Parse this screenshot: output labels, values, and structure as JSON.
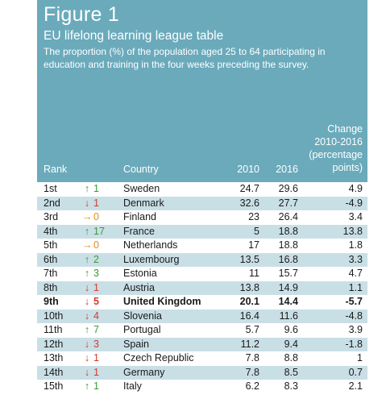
{
  "header": {
    "title": "Figure 1",
    "subtitle": "EU lifelong learning league table",
    "description": "The proportion (%) of the population aged 25 to 64 participating in education and training in the four weeks preceding the survey.",
    "background": "#6aaabb"
  },
  "columns": {
    "rank": "Rank",
    "country": "Country",
    "y2010": "2010",
    "y2016": "2016",
    "change_line1": "Change",
    "change_line2": "2010-2016",
    "change_line3": "(percentage",
    "change_line4": "points)"
  },
  "colors": {
    "up": "#3a9a3a",
    "down": "#d43a2a",
    "same": "#e98a1a",
    "shaded_row": "#c9dfe6"
  },
  "rows": [
    {
      "rank": "1st",
      "dir": "up",
      "move": "1",
      "country": "Sweden",
      "v2010": "24.7",
      "v2016": "29.6",
      "change": "4.9",
      "highlight": false
    },
    {
      "rank": "2nd",
      "dir": "down",
      "move": "1",
      "country": "Denmark",
      "v2010": "32.6",
      "v2016": "27.7",
      "change": "-4.9",
      "highlight": false
    },
    {
      "rank": "3rd",
      "dir": "same",
      "move": "0",
      "country": "Finland",
      "v2010": "23",
      "v2016": "26.4",
      "change": "3.4",
      "highlight": false
    },
    {
      "rank": "4th",
      "dir": "up",
      "move": "17",
      "country": "France",
      "v2010": "5",
      "v2016": "18.8",
      "change": "13.8",
      "highlight": false
    },
    {
      "rank": "5th",
      "dir": "same",
      "move": "0",
      "country": "Netherlands",
      "v2010": "17",
      "v2016": "18.8",
      "change": "1.8",
      "highlight": false
    },
    {
      "rank": "6th",
      "dir": "up",
      "move": "2",
      "country": "Luxembourg",
      "v2010": "13.5",
      "v2016": "16.8",
      "change": "3.3",
      "highlight": false
    },
    {
      "rank": "7th",
      "dir": "up",
      "move": "3",
      "country": "Estonia",
      "v2010": "11",
      "v2016": "15.7",
      "change": "4.7",
      "highlight": false
    },
    {
      "rank": "8th",
      "dir": "down",
      "move": "1",
      "country": "Austria",
      "v2010": "13.8",
      "v2016": "14.9",
      "change": "1.1",
      "highlight": false
    },
    {
      "rank": "9th",
      "dir": "down",
      "move": "5",
      "country": "United Kingdom",
      "v2010": "20.1",
      "v2016": "14.4",
      "change": "-5.7",
      "highlight": true
    },
    {
      "rank": "10th",
      "dir": "down",
      "move": "4",
      "country": "Slovenia",
      "v2010": "16.4",
      "v2016": "11.6",
      "change": "-4.8",
      "highlight": false
    },
    {
      "rank": "11th",
      "dir": "up",
      "move": "7",
      "country": "Portugal",
      "v2010": "5.7",
      "v2016": "9.6",
      "change": "3.9",
      "highlight": false
    },
    {
      "rank": "12th",
      "dir": "down",
      "move": "3",
      "country": "Spain",
      "v2010": "11.2",
      "v2016": "9.4",
      "change": "-1.8",
      "highlight": false
    },
    {
      "rank": "13th",
      "dir": "down",
      "move": "1",
      "country": "Czech Republic",
      "v2010": "7.8",
      "v2016": "8.8",
      "change": "1",
      "highlight": false
    },
    {
      "rank": "14th",
      "dir": "down",
      "move": "1",
      "country": "Germany",
      "v2010": "7.8",
      "v2016": "8.5",
      "change": "0.7",
      "highlight": false
    },
    {
      "rank": "15th",
      "dir": "up",
      "move": "1",
      "country": "Italy",
      "v2010": "6.2",
      "v2016": "8.3",
      "change": "2.1",
      "highlight": false
    }
  ]
}
